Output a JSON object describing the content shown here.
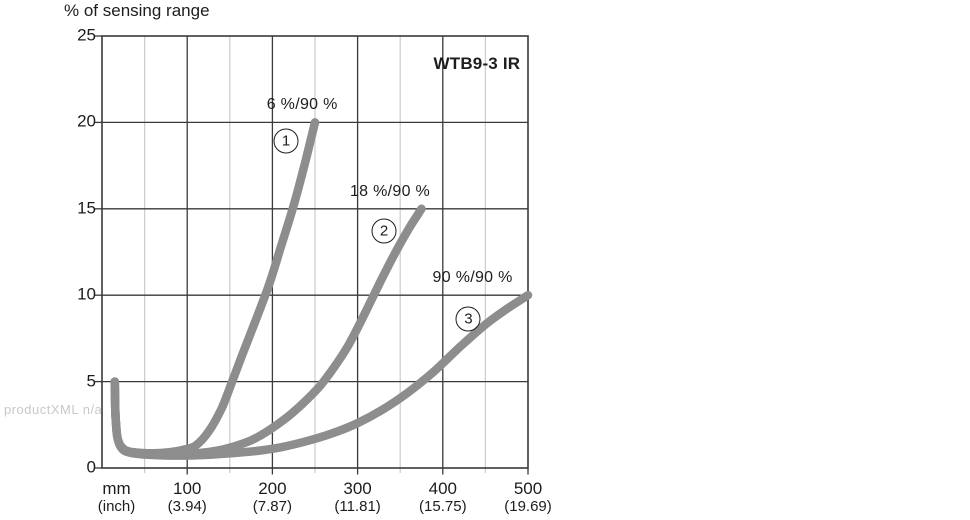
{
  "watermark": "productXML n/a",
  "chart_data": {
    "type": "line",
    "title": "WTB9-3 IR",
    "title_at": [
      440,
      23.4
    ],
    "ylabel": "% of sensing range",
    "xlabel_primary": "mm",
    "xlabel_secondary": "(inch)",
    "xlim": [
      0,
      500
    ],
    "ylim": [
      0,
      25
    ],
    "x_major_step": 100,
    "x_minor_step": 50,
    "y_major_step": 5,
    "grid": true,
    "legend_position": "inline-annotations",
    "yticks": [
      {
        "label": "25",
        "value": 25
      },
      {
        "label": "20",
        "value": 20
      },
      {
        "label": "15",
        "value": 15
      },
      {
        "label": "10",
        "value": 10
      },
      {
        "label": "5",
        "value": 5
      },
      {
        "label": "0",
        "value": 0
      }
    ],
    "xticks": [
      {
        "line1": "mm",
        "line2": "(inch)",
        "at_mm": 17
      },
      {
        "line1": "100",
        "line2": "(3.94)",
        "at_mm": 100
      },
      {
        "line1": "200",
        "line2": "(7.87)",
        "at_mm": 200
      },
      {
        "line1": "300",
        "line2": "(11.81)",
        "at_mm": 300
      },
      {
        "line1": "400",
        "line2": "(15.75)",
        "at_mm": 400
      },
      {
        "line1": "500",
        "line2": "(19.69)",
        "at_mm": 500
      }
    ],
    "series": [
      {
        "name": "1",
        "label": "6 %/90 %",
        "label_at": [
          235,
          21.0
        ],
        "marker": "1",
        "marker_at": [
          216,
          18.9
        ],
        "points": [
          [
            15,
            5
          ],
          [
            15.5,
            3.5
          ],
          [
            16.5,
            2.5
          ],
          [
            18,
            1.8
          ],
          [
            21,
            1.35
          ],
          [
            27,
            1.05
          ],
          [
            36,
            0.92
          ],
          [
            50,
            0.86
          ],
          [
            65,
            0.86
          ],
          [
            80,
            0.92
          ],
          [
            95,
            1.05
          ],
          [
            110,
            1.3
          ],
          [
            125,
            2.1
          ],
          [
            140,
            3.4
          ],
          [
            152,
            4.9
          ],
          [
            165,
            6.6
          ],
          [
            180,
            8.5
          ],
          [
            196,
            10.6
          ],
          [
            210,
            12.8
          ],
          [
            225,
            15.2
          ],
          [
            238,
            17.6
          ],
          [
            250,
            20
          ]
        ]
      },
      {
        "name": "2",
        "label": "18 %/90 %",
        "label_at": [
          338,
          16.0
        ],
        "marker": "2",
        "marker_at": [
          331,
          13.7
        ],
        "points": [
          [
            15,
            5
          ],
          [
            15.5,
            3.5
          ],
          [
            16.5,
            2.5
          ],
          [
            18,
            1.8
          ],
          [
            21,
            1.35
          ],
          [
            27,
            1.0
          ],
          [
            38,
            0.88
          ],
          [
            55,
            0.8
          ],
          [
            75,
            0.78
          ],
          [
            95,
            0.8
          ],
          [
            115,
            0.87
          ],
          [
            135,
            1.0
          ],
          [
            155,
            1.25
          ],
          [
            175,
            1.6
          ],
          [
            195,
            2.15
          ],
          [
            215,
            2.85
          ],
          [
            235,
            3.7
          ],
          [
            255,
            4.7
          ],
          [
            272,
            5.8
          ],
          [
            288,
            7.0
          ],
          [
            302,
            8.3
          ],
          [
            316,
            9.7
          ],
          [
            332,
            11.3
          ],
          [
            348,
            12.8
          ],
          [
            362,
            14.0
          ],
          [
            375,
            15
          ]
        ]
      },
      {
        "name": "3",
        "label": "90 %/90 %",
        "label_at": [
          435,
          11.0
        ],
        "marker": "3",
        "marker_at": [
          430,
          8.6
        ],
        "points": [
          [
            15,
            5
          ],
          [
            15.5,
            3.5
          ],
          [
            16.5,
            2.5
          ],
          [
            18,
            1.8
          ],
          [
            21,
            1.3
          ],
          [
            27,
            0.98
          ],
          [
            38,
            0.84
          ],
          [
            60,
            0.75
          ],
          [
            90,
            0.72
          ],
          [
            120,
            0.75
          ],
          [
            150,
            0.85
          ],
          [
            180,
            0.98
          ],
          [
            210,
            1.2
          ],
          [
            240,
            1.55
          ],
          [
            270,
            2.0
          ],
          [
            300,
            2.6
          ],
          [
            330,
            3.4
          ],
          [
            360,
            4.4
          ],
          [
            390,
            5.6
          ],
          [
            420,
            7.0
          ],
          [
            450,
            8.3
          ],
          [
            475,
            9.2
          ],
          [
            500,
            10
          ]
        ]
      }
    ],
    "colors": {
      "background": "#ffffff",
      "curve": "#8d8d8d",
      "grid_major": "#3a3a3a",
      "grid_minor": "#cccccc",
      "text": "#1d1d1b",
      "watermark": "#c9c9c9"
    }
  }
}
